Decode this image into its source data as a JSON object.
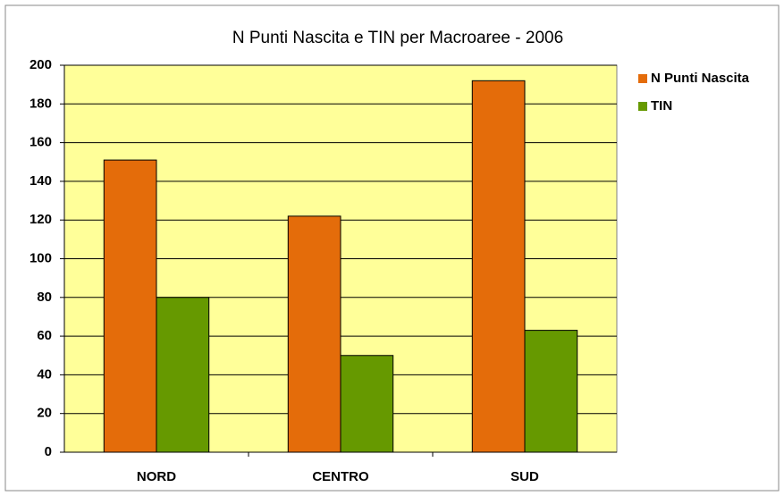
{
  "chart_data": {
    "type": "bar",
    "title": "N Punti Nascita e TIN per Macroaree - 2006",
    "categories": [
      "NORD",
      "CENTRO",
      "SUD"
    ],
    "series": [
      {
        "name": "N Punti Nascita",
        "color": "#e46c0a",
        "values": [
          151,
          122,
          192
        ]
      },
      {
        "name": "TIN",
        "color": "#669900",
        "values": [
          80,
          50,
          63
        ]
      }
    ],
    "ylim": [
      0,
      200
    ],
    "yticks": [
      0,
      20,
      40,
      60,
      80,
      100,
      120,
      140,
      160,
      180,
      200
    ],
    "grid": true,
    "legend": "right"
  }
}
